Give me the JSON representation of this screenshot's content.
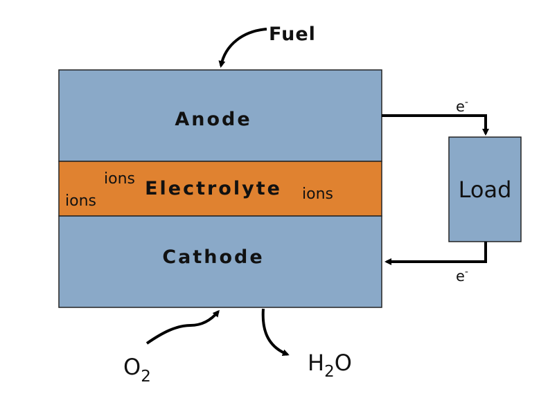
{
  "labels": {
    "fuel": "Fuel",
    "anode": "Anode",
    "electrolyte": "Electrolyte",
    "cathode": "Cathode",
    "load": "Load",
    "ion_left_upper": "ions",
    "ion_left_lower": "ions",
    "ion_right": "ions",
    "electron_top_base": "e",
    "electron_top_sup": "-",
    "electron_bottom_base": "e",
    "electron_bottom_sup": "-",
    "oxygen_base": "O",
    "oxygen_sub": "2",
    "water_base_h": "H",
    "water_sub": "2",
    "water_base_o": "O"
  },
  "colors": {
    "electrode_fill": "#8aa9c8",
    "electrolyte_fill": "#e08230",
    "stroke": "#222222",
    "wire": "#000000",
    "text": "#111111"
  }
}
